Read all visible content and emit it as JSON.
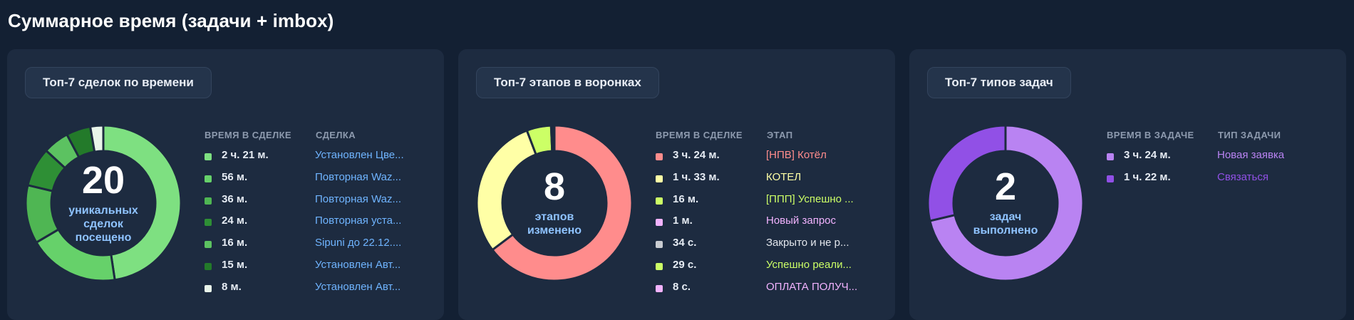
{
  "page_title": "Суммарное время (задачи + imbox)",
  "cards": [
    {
      "tag": "Топ-7 сделок по времени",
      "big_number": "20",
      "number_label": [
        "уникальных",
        "сделок",
        "посещено"
      ],
      "col_time": "ВРЕМЯ В СДЕЛКЕ",
      "col_name": "СДЕЛКА",
      "items": [
        {
          "time": "2 ч. 21 м.",
          "name": "Установлен Цве...",
          "color": "#7ee081",
          "name_color": "#6fb4ff"
        },
        {
          "time": "56 м.",
          "name": "Повторная Waz...",
          "color": "#66d16a",
          "name_color": "#6fb4ff"
        },
        {
          "time": "36 м.",
          "name": "Повторная Waz...",
          "color": "#4fb653",
          "name_color": "#6fb4ff"
        },
        {
          "time": "24 м.",
          "name": "Повторная уста...",
          "color": "#2e8f35",
          "name_color": "#6fb4ff"
        },
        {
          "time": "16 м.",
          "name": "Sipuni  до 22.12....",
          "color": "#5cc261",
          "name_color": "#6fb4ff"
        },
        {
          "time": "15 м.",
          "name": "Установлен Авт...",
          "color": "#237a2a",
          "name_color": "#6fb4ff"
        },
        {
          "time": "8 м.",
          "name": "Установлен Авт...",
          "color": "#e9f5ea",
          "name_color": "#6fb4ff"
        }
      ],
      "chart_data": {
        "type": "pie",
        "labels": [
          "Установлен Цве...",
          "Повторная Waz...",
          "Повторная Waz...",
          "Повторная уста...",
          "Sipuni  до 22.12....",
          "Установлен Авт...",
          "Установлен Авт..."
        ],
        "values": [
          141,
          56,
          36,
          24,
          16,
          15,
          8
        ],
        "colors": [
          "#7ee081",
          "#66d16a",
          "#4fb653",
          "#2e8f35",
          "#5cc261",
          "#237a2a",
          "#e9f5ea"
        ]
      }
    },
    {
      "tag": "Топ-7 этапов в воронках",
      "big_number": "8",
      "number_label": [
        "этапов",
        "изменено"
      ],
      "col_time": "ВРЕМЯ В СДЕЛКЕ",
      "col_name": "ЭТАП",
      "items": [
        {
          "time": "3 ч. 24 м.",
          "name": "[НПВ] Котёл",
          "color": "#ff8c8c",
          "name_color": "#ff8c8c"
        },
        {
          "time": "1 ч. 33 м.",
          "name": "КОТЕЛ",
          "color": "#ffffa6",
          "name_color": "#ffffa6"
        },
        {
          "time": "16 м.",
          "name": "[ППП] Успешно ...",
          "color": "#ccff66",
          "name_color": "#ccff66"
        },
        {
          "time": "1 м.",
          "name": "Новый запрос",
          "color": "#f2b3ff",
          "name_color": "#f2b3ff"
        },
        {
          "time": "34 с.",
          "name": "Закрыто и не р...",
          "color": "#c9ccd1",
          "name_color": "#e2e6ec"
        },
        {
          "time": "29 с.",
          "name": "Успешно реали...",
          "color": "#ccff66",
          "name_color": "#ccff66"
        },
        {
          "time": "8 с.",
          "name": "ОПЛАТА ПОЛУЧ...",
          "color": "#f2b3ff",
          "name_color": "#f2b3ff"
        }
      ],
      "chart_data": {
        "type": "pie",
        "labels": [
          "[НПВ] Котёл",
          "КОТЕЛ",
          "[ППП] Успешно ...",
          "Новый запрос",
          "Закрыто и не р...",
          "Успешно реали...",
          "ОПЛАТА ПОЛУЧ..."
        ],
        "values": [
          204,
          93,
          16,
          1,
          0.57,
          0.48,
          0.13
        ],
        "colors": [
          "#ff8c8c",
          "#ffffa6",
          "#ccff66",
          "#f2b3ff",
          "#c9ccd1",
          "#ccff66",
          "#f2b3ff"
        ]
      }
    },
    {
      "tag": "Топ-7 типов задач",
      "big_number": "2",
      "number_label": [
        "задач",
        "выполнено"
      ],
      "col_time": "ВРЕМЯ В ЗАДАЧЕ",
      "col_name": "ТИП ЗАДАЧИ",
      "items": [
        {
          "time": "3 ч. 24 м.",
          "name": "Новая заявка",
          "color": "#b983f2",
          "name_color": "#b983f2"
        },
        {
          "time": "1 ч. 22 м.",
          "name": "Связаться",
          "color": "#9150e6",
          "name_color": "#9150e6"
        }
      ],
      "chart_data": {
        "type": "pie",
        "labels": [
          "Новая заявка",
          "Связаться"
        ],
        "values": [
          204,
          82
        ],
        "colors": [
          "#b983f2",
          "#9150e6"
        ]
      }
    }
  ]
}
